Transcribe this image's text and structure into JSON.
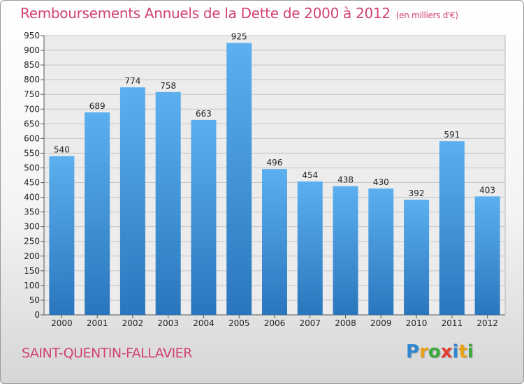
{
  "header": {
    "title": "Remboursements Annuels de la Dette de 2000 à 2012",
    "unit": "(en milliers d'€)"
  },
  "footer": {
    "commune": "SAINT-QUENTIN-FALLAVIER",
    "logo_letters": [
      "P",
      "r",
      "o",
      "x",
      "i",
      "t",
      "i"
    ],
    "logo_colors": [
      "#2f86d0",
      "#e8a214",
      "#3aa83a",
      "#e23c2e",
      "#2f86d0",
      "#e8a214",
      "#3aa83a"
    ]
  },
  "chart_data": {
    "type": "bar",
    "categories": [
      "2000",
      "2001",
      "2002",
      "2003",
      "2004",
      "2005",
      "2006",
      "2007",
      "2008",
      "2009",
      "2010",
      "2011",
      "2012"
    ],
    "values": [
      540,
      689,
      774,
      758,
      663,
      925,
      496,
      454,
      438,
      430,
      392,
      591,
      403
    ],
    "data_labels": [
      "540",
      "689",
      "774",
      "758",
      "663",
      "925",
      "496",
      "454",
      "438",
      "430",
      "392",
      "591",
      "403"
    ],
    "title": "Remboursements Annuels de la Dette de 2000 à 2012",
    "ylim": [
      0,
      950
    ],
    "yticks": [
      0,
      50,
      100,
      150,
      200,
      250,
      300,
      350,
      400,
      450,
      500,
      550,
      600,
      650,
      700,
      750,
      800,
      850,
      900,
      950
    ],
    "grid": true,
    "bar_color": "#4a9fe0",
    "bar_color_dark": "#2a78c0"
  }
}
